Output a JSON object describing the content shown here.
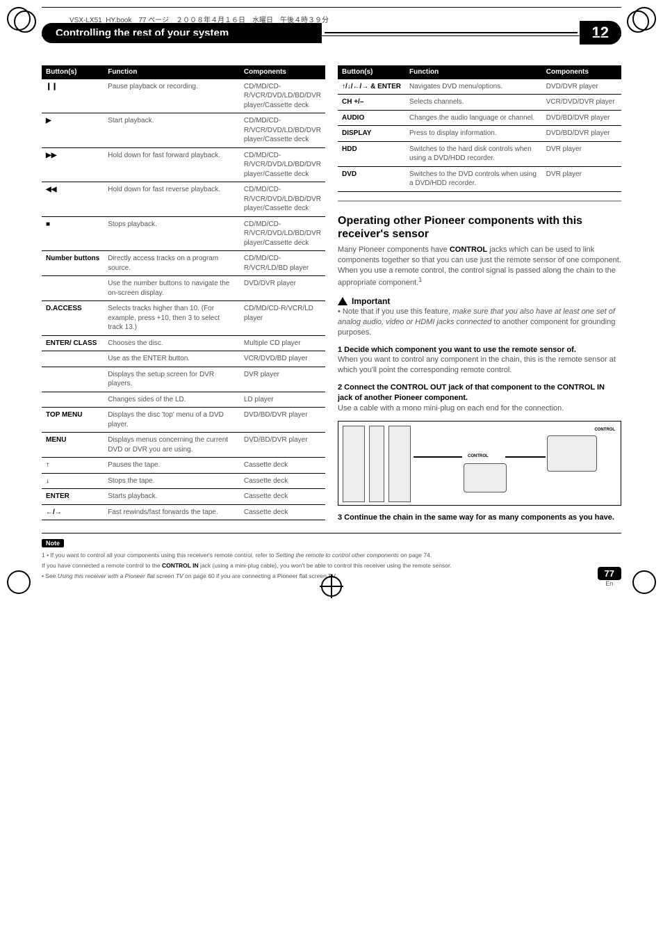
{
  "meta": {
    "book_header": "VSX-LX51_HY.book　77 ページ　２００８年４月１６日　水曜日　午後４時３９分",
    "chapter_title": "Controlling the rest of your system",
    "chapter_number": "12",
    "page_number": "77",
    "page_lang": "En"
  },
  "left_table": {
    "headers": [
      "Button(s)",
      "Function",
      "Components"
    ],
    "rows": [
      {
        "btn": "❙❙",
        "func": "Pause playback or recording.",
        "comp": "CD/MD/CD-R/VCR/DVD/LD/BD/DVR player/Cassette deck"
      },
      {
        "btn": "▶",
        "func": "Start playback.",
        "comp": "CD/MD/CD-R/VCR/DVD/LD/BD/DVR player/Cassette deck"
      },
      {
        "btn": "▶▶",
        "func": "Hold down for fast forward playback.",
        "comp": "CD/MD/CD-R/VCR/DVD/LD/BD/DVR player/Cassette deck"
      },
      {
        "btn": "◀◀",
        "func": "Hold down for fast reverse playback.",
        "comp": "CD/MD/CD-R/VCR/DVD/LD/BD/DVR player/Cassette deck"
      },
      {
        "btn": "■",
        "func": "Stops playback.",
        "comp": "CD/MD/CD-R/VCR/DVD/LD/BD/DVR player/Cassette deck"
      },
      {
        "btn": "Number buttons",
        "func": "Directly access tracks on a program source.",
        "comp": "CD/MD/CD-R/VCR/LD/BD player"
      },
      {
        "btn": "",
        "func": "Use the number buttons to navigate the on-screen display.",
        "comp": "DVD/DVR player"
      },
      {
        "btn": "D.ACCESS",
        "func": "Selects tracks higher than 10. (For example, press +10, then 3 to select track 13.)",
        "comp": "CD/MD/CD-R/VCR/LD player"
      },
      {
        "btn": "ENTER/ CLASS",
        "func": "Chooses the disc.",
        "comp": "Multiple CD player"
      },
      {
        "btn": "",
        "func": "Use as the ENTER button.",
        "comp": "VCR/DVD/BD player"
      },
      {
        "btn": "",
        "func": "Displays the setup screen for DVR players.",
        "comp": "DVR player"
      },
      {
        "btn": "",
        "func": "Changes sides of the LD.",
        "comp": "LD player"
      },
      {
        "btn": "TOP MENU",
        "func": "Displays the disc 'top' menu of a DVD player.",
        "comp": "DVD/BD/DVR player"
      },
      {
        "btn": "MENU",
        "func": "Displays menus concerning the current DVD or DVR you are using.",
        "comp": "DVD/BD/DVR player"
      },
      {
        "btn": "↑",
        "func": "Pauses the tape.",
        "comp": "Cassette deck"
      },
      {
        "btn": "↓",
        "func": "Stops the tape.",
        "comp": "Cassette deck"
      },
      {
        "btn": "ENTER",
        "func": "Starts playback.",
        "comp": "Cassette deck"
      },
      {
        "btn": "←/→",
        "func": "Fast rewinds/fast forwards the tape.",
        "comp": "Cassette deck"
      }
    ]
  },
  "right_table": {
    "headers": [
      "Button(s)",
      "Function",
      "Components"
    ],
    "rows": [
      {
        "btn": "↑/↓/←/→ & ENTER",
        "func": "Navigates DVD menu/options.",
        "comp": "DVD/DVR player"
      },
      {
        "btn": "CH +/–",
        "func": "Selects channels.",
        "comp": "VCR/DVD/DVR player"
      },
      {
        "btn": "AUDIO",
        "func": "Changes the audio language or channel.",
        "comp": "DVD/BD/DVR player"
      },
      {
        "btn": "DISPLAY",
        "func": "Press to display information.",
        "comp": "DVD/BD/DVR player"
      },
      {
        "btn": "HDD",
        "func": "Switches to the hard disk controls when using a DVD/HDD recorder.",
        "comp": "DVR player"
      },
      {
        "btn": "DVD",
        "func": "Switches to the DVD controls when using a DVD/HDD recorder.",
        "comp": "DVR player"
      }
    ]
  },
  "section": {
    "title": "Operating other Pioneer components with this receiver's sensor",
    "intro_1": "Many Pioneer components have ",
    "intro_bold": "CONTROL",
    "intro_2": " jacks which can be used to link components together so that you can use just the remote sensor of one component. When you use a remote control, the control signal is passed along the chain to the appropriate component.",
    "sup": "1",
    "important_label": "Important",
    "important_bullet_1": "Note that if you use this feature, ",
    "important_italic": "make sure that you also have at least one set of analog audio, video or HDMI jacks connected",
    "important_bullet_2": " to another component for grounding purposes.",
    "step1_title": "1    Decide which component you want to use the remote sensor of.",
    "step1_body": "When you want to control any component in the chain, this is the remote sensor at which you'll point the corresponding remote control.",
    "step2_title": "2    Connect the CONTROL OUT jack of that component to the CONTROL IN jack of another Pioneer component.",
    "step2_body": "Use a cable with a mono mini-plug on each end for the connection.",
    "step3_title": "3    Continue the chain in the same way for as many components as you have."
  },
  "note": {
    "label": "Note",
    "line1_a": "1 • If you want to control all your components using this receiver's remote control, refer to ",
    "line1_i": "Setting the remote to control other components",
    "line1_b": " on page 74.",
    "line2_a": "If you have connected a remote control to the ",
    "line2_bold": "CONTROL IN",
    "line2_b": " jack (using a mini-plug cable), you won't be able to control this receiver using the remote sensor.",
    "line3_a": "• See ",
    "line3_i": "Using this receiver with a Pioneer flat screen TV",
    "line3_b": " on page 60 if you are connecting a Pioneer flat screen TV."
  }
}
